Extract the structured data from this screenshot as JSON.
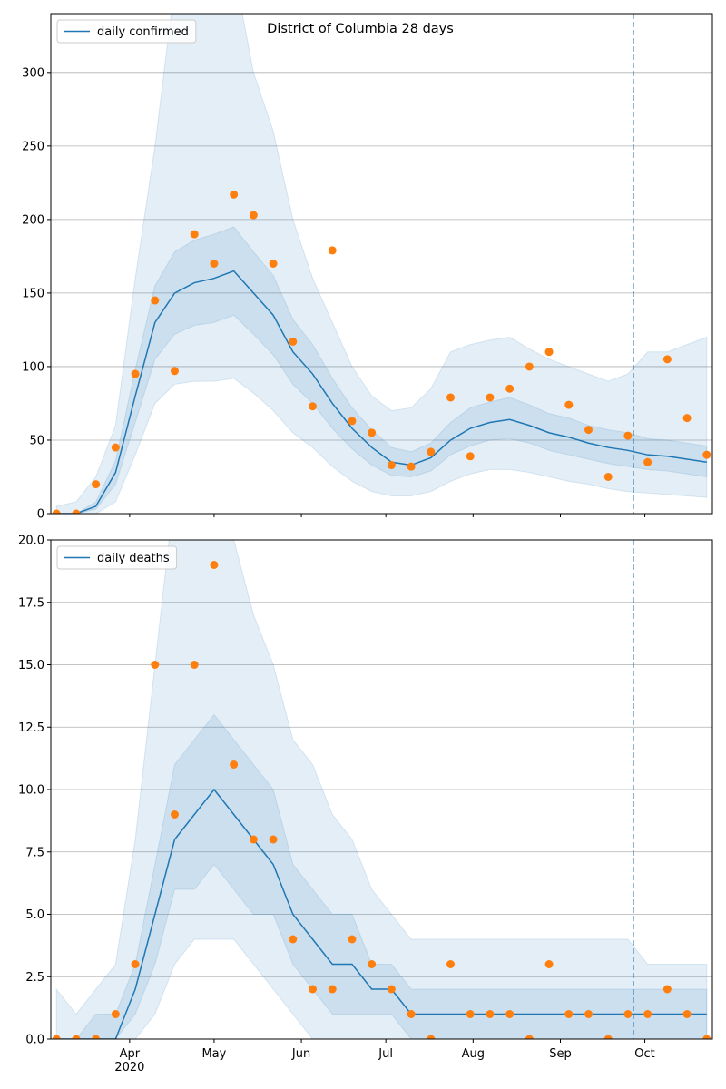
{
  "chart_data": [
    {
      "type": "line",
      "title": "District of Columbia 28 days",
      "x": [
        66,
        73,
        80,
        87,
        94,
        101,
        108,
        115,
        122,
        129,
        136,
        143,
        150,
        157,
        164,
        171,
        178,
        185,
        192,
        199,
        206,
        213,
        220,
        227,
        234,
        241,
        248,
        255,
        262,
        269,
        276,
        283,
        290,
        297
      ],
      "xlim": [
        64,
        299
      ],
      "ylim": [
        0,
        340
      ],
      "yticks": [
        0,
        50,
        100,
        150,
        200,
        250,
        300
      ],
      "grid": true,
      "legend": "upper left",
      "vline": 271,
      "series": [
        {
          "name": "daily confirmed",
          "color": "#1f77b4",
          "values": [
            0,
            0,
            5,
            28,
            80,
            130,
            150,
            157,
            160,
            165,
            150,
            135,
            110,
            95,
            75,
            58,
            45,
            35,
            33,
            38,
            50,
            58,
            62,
            64,
            60,
            55,
            52,
            48,
            45,
            43,
            40,
            39,
            37,
            35
          ]
        }
      ],
      "points": {
        "color": "#ff7f0e",
        "values": [
          0,
          0,
          20,
          45,
          95,
          145,
          97,
          190,
          170,
          217,
          203,
          170,
          117,
          73,
          179,
          63,
          55,
          33,
          32,
          42,
          79,
          39,
          79,
          85,
          100,
          110,
          74,
          57,
          25,
          53,
          35,
          105,
          65,
          40
        ]
      },
      "bands": [
        {
          "color": "#1f77b4",
          "lower": [
            0,
            0,
            0,
            8,
            40,
            75,
            88,
            90,
            90,
            92,
            82,
            70,
            55,
            45,
            32,
            22,
            15,
            12,
            12,
            15,
            22,
            27,
            30,
            30,
            28,
            25,
            22,
            20,
            17,
            15,
            14,
            13,
            12,
            11
          ],
          "upper": [
            5,
            8,
            25,
            60,
            160,
            250,
            360,
            380,
            380,
            370,
            300,
            260,
            200,
            160,
            130,
            100,
            80,
            70,
            72,
            85,
            110,
            115,
            118,
            120,
            112,
            105,
            100,
            95,
            90,
            95,
            110,
            110,
            115,
            120
          ]
        },
        {
          "color": "#1f77b4",
          "lower": [
            0,
            0,
            3,
            20,
            62,
            105,
            122,
            128,
            130,
            135,
            122,
            108,
            88,
            75,
            58,
            44,
            33,
            26,
            25,
            29,
            40,
            46,
            50,
            51,
            48,
            43,
            40,
            37,
            34,
            32,
            30,
            29,
            27,
            25
          ],
          "upper": [
            0,
            0,
            8,
            36,
            98,
            155,
            178,
            186,
            190,
            195,
            178,
            162,
            132,
            115,
            92,
            72,
            57,
            45,
            42,
            48,
            62,
            72,
            76,
            79,
            74,
            68,
            65,
            60,
            57,
            55,
            51,
            50,
            48,
            46
          ]
        }
      ]
    },
    {
      "type": "line",
      "x": [
        66,
        73,
        80,
        87,
        94,
        101,
        108,
        115,
        122,
        129,
        136,
        143,
        150,
        157,
        164,
        171,
        178,
        185,
        192,
        199,
        206,
        213,
        220,
        227,
        234,
        241,
        248,
        255,
        262,
        269,
        276,
        283,
        290,
        297
      ],
      "xlim": [
        64,
        299
      ],
      "ylim": [
        0,
        20
      ],
      "xticks": [
        {
          "value": 92,
          "label": "Apr\n2020"
        },
        {
          "value": 122,
          "label": "May"
        },
        {
          "value": 153,
          "label": "Jun"
        },
        {
          "value": 183,
          "label": "Jul"
        },
        {
          "value": 214,
          "label": "Aug"
        },
        {
          "value": 245,
          "label": "Sep"
        },
        {
          "value": 275,
          "label": "Oct"
        }
      ],
      "yticks": [
        {
          "value": 0,
          "label": "0.0"
        },
        {
          "value": 2.5,
          "label": "2.5"
        },
        {
          "value": 5,
          "label": "5.0"
        },
        {
          "value": 7.5,
          "label": "7.5"
        },
        {
          "value": 10,
          "label": "10.0"
        },
        {
          "value": 12.5,
          "label": "12.5"
        },
        {
          "value": 15,
          "label": "15.0"
        },
        {
          "value": 17.5,
          "label": "17.5"
        },
        {
          "value": 20,
          "label": "20.0"
        }
      ],
      "grid": true,
      "legend": "upper left",
      "vline": 271,
      "series": [
        {
          "name": "daily deaths",
          "color": "#1f77b4",
          "values": [
            0,
            0,
            0,
            0,
            2,
            5,
            8,
            9,
            10,
            9,
            8,
            7,
            5,
            4,
            3,
            3,
            2,
            2,
            1,
            1,
            1,
            1,
            1,
            1,
            1,
            1,
            1,
            1,
            1,
            1,
            1,
            1,
            1,
            1
          ]
        }
      ],
      "points": {
        "color": "#ff7f0e",
        "values": [
          0,
          0,
          0,
          1,
          3,
          15,
          9,
          15,
          19,
          11,
          8,
          8,
          4,
          2,
          2,
          4,
          3,
          2,
          1,
          0,
          3,
          1,
          1,
          1,
          0,
          3,
          1,
          1,
          0,
          1,
          1,
          2,
          1,
          0
        ]
      },
      "bands": [
        {
          "color": "#1f77b4",
          "lower": [
            0,
            0,
            0,
            0,
            0,
            1,
            3,
            4,
            4,
            4,
            3,
            2,
            1,
            0,
            0,
            0,
            0,
            0,
            0,
            0,
            0,
            0,
            0,
            0,
            0,
            0,
            0,
            0,
            0,
            0,
            0,
            0,
            0,
            0
          ],
          "upper": [
            2,
            1,
            2,
            3,
            8,
            15,
            22,
            22,
            22,
            20,
            17,
            15,
            12,
            11,
            9,
            8,
            6,
            5,
            4,
            4,
            4,
            4,
            4,
            4,
            4,
            4,
            4,
            4,
            4,
            4,
            3,
            3,
            3,
            3
          ]
        },
        {
          "color": "#1f77b4",
          "lower": [
            0,
            0,
            0,
            0,
            1,
            3,
            6,
            6,
            7,
            6,
            5,
            5,
            3,
            2,
            1,
            1,
            1,
            1,
            0,
            0,
            0,
            0,
            0,
            0,
            0,
            0,
            0,
            0,
            0,
            0,
            0,
            0,
            0,
            0
          ],
          "upper": [
            0,
            0,
            1,
            1,
            3,
            7,
            11,
            12,
            13,
            12,
            11,
            10,
            7,
            6,
            5,
            5,
            3,
            3,
            2,
            2,
            2,
            2,
            2,
            2,
            2,
            2,
            2,
            2,
            2,
            2,
            2,
            2,
            2,
            2
          ]
        }
      ]
    }
  ]
}
